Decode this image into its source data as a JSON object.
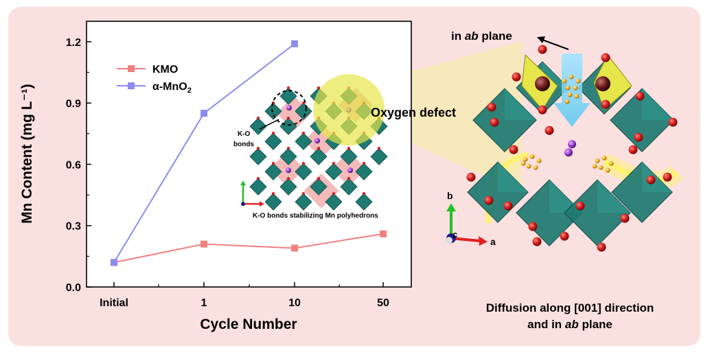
{
  "chart_data": {
    "type": "line",
    "title": "",
    "xlabel": "Cycle Number",
    "ylabel": "Mn Content (mg L⁻¹)",
    "categories": [
      "Initial",
      "1",
      "10",
      "50"
    ],
    "ylim": [
      0.0,
      1.3
    ],
    "yticks": [
      "0.0",
      "0.3",
      "0.6",
      "0.9",
      "1.2"
    ],
    "legend_position": "top-left",
    "series": [
      {
        "name": "KMO",
        "values": [
          0.12,
          0.21,
          0.19,
          0.26
        ],
        "color": "#f08080"
      },
      {
        "name": "α-MnO2",
        "values": [
          0.12,
          0.85,
          null,
          null
        ],
        "values_full": [
          0.12,
          0.85,
          1.19
        ],
        "color": "#8b8bef"
      }
    ]
  },
  "legend": {
    "kmo": "KMO",
    "mno2_main": "α-MnO",
    "mno2_sub": "2"
  },
  "inset": {
    "ko_bonds_label_1": "K-O",
    "ko_bonds_label_2": "bonds",
    "caption": "K-O bonds stabilizing Mn polyhedrons"
  },
  "oxygen_defect_label": "Oxygen defect",
  "structure": {
    "top_label_prefix": "in ",
    "top_label_italic": "ab",
    "top_label_suffix": " plane",
    "axis_b": "b",
    "axis_c": "c",
    "axis_a": "a",
    "caption_line1": "Diffusion along [001] direction",
    "caption_line2_prefix": "and in ",
    "caption_line2_italic": "ab",
    "caption_line2_suffix": " plane"
  },
  "colors": {
    "panel_bg": "#fbe0e0",
    "kmo": "#f08080",
    "mno2": "#8b8bef",
    "teal": "#1f7a72",
    "oxygen": "#d42020",
    "potassium": "#9a3fd0",
    "defect_yellow": "#e6e64a",
    "arrow_cyan": "#7fd6f5"
  }
}
